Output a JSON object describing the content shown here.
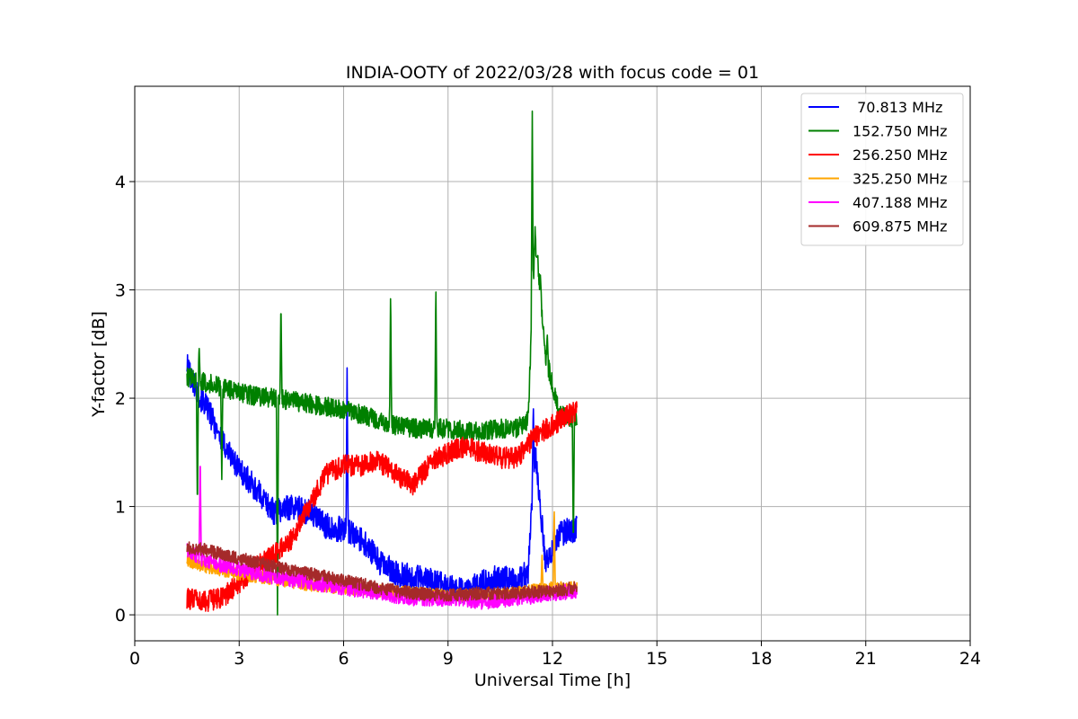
{
  "chart_data": {
    "type": "line",
    "title": "INDIA-OOTY of 2022/03/28 with focus code = 01",
    "xlabel": "Universal Time [h]",
    "ylabel": "Y-factor [dB]",
    "xlim": [
      0,
      24
    ],
    "ylim": [
      -0.24,
      4.88
    ],
    "xticks": [
      0,
      3,
      6,
      9,
      12,
      15,
      18,
      21,
      24
    ],
    "yticks": [
      0,
      1,
      2,
      3,
      4
    ],
    "grid": true,
    "legend_position": "top-right",
    "series": [
      {
        "name": " 70.813 MHz",
        "color": "#0000ff",
        "x": [
          1.5,
          1.8,
          2.1,
          2.5,
          3.0,
          3.5,
          4.0,
          4.5,
          5.0,
          5.5,
          6.0,
          6.5,
          7.0,
          7.5,
          8.0,
          8.5,
          9.0,
          9.5,
          10.0,
          10.5,
          11.0,
          11.3,
          11.5,
          11.8,
          12.2,
          12.7
        ],
        "y": [
          2.3,
          2.05,
          1.9,
          1.6,
          1.35,
          1.15,
          0.95,
          1.0,
          0.95,
          0.82,
          0.78,
          0.7,
          0.5,
          0.38,
          0.35,
          0.32,
          0.25,
          0.22,
          0.3,
          0.35,
          0.3,
          0.4,
          1.5,
          0.5,
          0.75,
          0.8
        ],
        "spikes": [
          [
            2.4,
            1.7
          ],
          [
            6.1,
            2.28
          ],
          [
            11.45,
            1.95
          ]
        ],
        "noise": 0.12
      },
      {
        "name": "152.750 MHz",
        "color": "#008000",
        "x": [
          1.5,
          2.0,
          2.5,
          3.0,
          3.5,
          4.0,
          4.5,
          5.0,
          5.5,
          6.0,
          6.5,
          7.0,
          7.5,
          8.0,
          8.5,
          9.0,
          9.5,
          10.0,
          10.5,
          11.0,
          11.3,
          11.5,
          11.8,
          12.2,
          12.7
        ],
        "y": [
          2.2,
          2.15,
          2.1,
          2.05,
          2.02,
          2.0,
          1.98,
          1.95,
          1.92,
          1.9,
          1.85,
          1.8,
          1.75,
          1.72,
          1.72,
          1.72,
          1.7,
          1.7,
          1.72,
          1.72,
          1.8,
          3.5,
          2.4,
          1.85,
          1.8
        ],
        "spikes": [
          [
            1.85,
            2.48
          ],
          [
            4.2,
            2.9
          ],
          [
            7.35,
            3.0
          ],
          [
            8.65,
            3.07
          ],
          [
            11.42,
            4.65
          ],
          [
            11.55,
            3.3
          ],
          [
            11.65,
            3.15
          ],
          [
            11.85,
            2.6
          ]
        ],
        "dips": [
          [
            1.8,
            0.95
          ],
          [
            2.5,
            1.25
          ],
          [
            4.1,
            0.0
          ],
          [
            12.6,
            0.6
          ]
        ],
        "noise": 0.09
      },
      {
        "name": "256.250 MHz",
        "color": "#ff0000",
        "x": [
          1.5,
          2.0,
          2.5,
          3.0,
          3.5,
          4.0,
          4.5,
          5.0,
          5.5,
          6.0,
          6.5,
          7.0,
          7.5,
          8.0,
          8.5,
          9.0,
          9.5,
          10.0,
          10.5,
          11.0,
          11.5,
          12.0,
          12.5,
          12.7
        ],
        "y": [
          0.15,
          0.12,
          0.15,
          0.3,
          0.45,
          0.55,
          0.7,
          1.0,
          1.3,
          1.38,
          1.38,
          1.42,
          1.3,
          1.2,
          1.4,
          1.5,
          1.55,
          1.5,
          1.45,
          1.45,
          1.65,
          1.75,
          1.85,
          1.9
        ],
        "spikes": [],
        "noise": 0.1
      },
      {
        "name": "325.250 MHz",
        "color": "#ffa500",
        "x": [
          1.5,
          2.0,
          3.0,
          4.0,
          5.0,
          6.0,
          7.0,
          8.0,
          9.0,
          10.0,
          11.0,
          12.0,
          12.7
        ],
        "y": [
          0.5,
          0.45,
          0.38,
          0.33,
          0.28,
          0.25,
          0.22,
          0.2,
          0.18,
          0.18,
          0.2,
          0.25,
          0.25
        ],
        "spikes": [
          [
            12.05,
            1.0
          ],
          [
            11.7,
            0.55
          ]
        ],
        "noise": 0.06
      },
      {
        "name": "407.188 MHz",
        "color": "#ff00ff",
        "x": [
          1.5,
          2.0,
          3.0,
          4.0,
          5.0,
          6.0,
          7.0,
          8.0,
          9.0,
          10.0,
          11.0,
          12.0,
          12.7
        ],
        "y": [
          0.6,
          0.5,
          0.42,
          0.35,
          0.3,
          0.25,
          0.2,
          0.15,
          0.15,
          0.12,
          0.15,
          0.2,
          0.22
        ],
        "spikes": [
          [
            1.88,
            1.5
          ]
        ],
        "noise": 0.07
      },
      {
        "name": "609.875 MHz",
        "color": "#a52a2a",
        "x": [
          1.5,
          2.0,
          3.0,
          4.0,
          5.0,
          6.0,
          7.0,
          8.0,
          9.0,
          10.0,
          11.0,
          12.0,
          12.7
        ],
        "y": [
          0.62,
          0.6,
          0.52,
          0.45,
          0.38,
          0.32,
          0.25,
          0.2,
          0.18,
          0.2,
          0.2,
          0.22,
          0.25
        ],
        "spikes": [],
        "noise": 0.06
      }
    ]
  }
}
